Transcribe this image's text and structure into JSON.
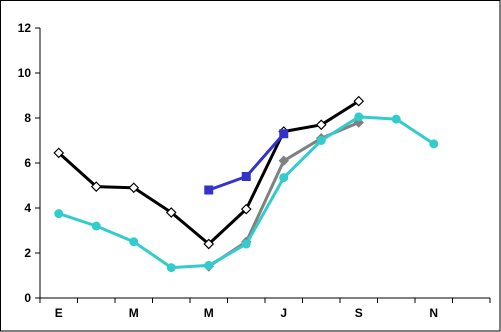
{
  "chart_data": {
    "type": "line",
    "title": "",
    "xlabel": "",
    "ylabel": "",
    "x_positions": [
      1,
      2,
      3,
      4,
      5,
      6,
      7,
      8,
      9,
      10,
      11,
      12
    ],
    "x_tick_labels": [
      {
        "x": 1,
        "label": "E"
      },
      {
        "x": 3,
        "label": "M"
      },
      {
        "x": 5,
        "label": "M"
      },
      {
        "x": 7,
        "label": "J"
      },
      {
        "x": 9,
        "label": "S"
      },
      {
        "x": 11,
        "label": "N"
      }
    ],
    "xlim": [
      0.5,
      12.5
    ],
    "ylim": [
      0,
      12
    ],
    "y_ticks": [
      0,
      2,
      4,
      6,
      8,
      10,
      12
    ],
    "grid": false,
    "legend": "none",
    "series": [
      {
        "color": "#000000",
        "marker": "diamond-open",
        "points": [
          [
            1,
            6.45
          ],
          [
            2,
            4.95
          ],
          [
            3,
            4.9
          ],
          [
            4,
            3.8
          ],
          [
            5,
            2.4
          ],
          [
            6,
            3.95
          ],
          [
            7,
            7.4
          ],
          [
            8,
            7.7
          ],
          [
            9,
            8.75
          ]
        ]
      },
      {
        "color": "#3333CC",
        "marker": "square",
        "points": [
          [
            5,
            4.8
          ],
          [
            6,
            5.4
          ],
          [
            7,
            7.3
          ]
        ]
      },
      {
        "color": "#808080",
        "marker": "diamond",
        "points": [
          [
            5,
            1.4
          ],
          [
            6,
            2.5
          ],
          [
            7,
            6.1
          ],
          [
            8,
            7.1
          ],
          [
            9,
            7.8
          ]
        ]
      },
      {
        "color": "#33CCCC",
        "marker": "circle",
        "points": [
          [
            1,
            3.75
          ],
          [
            2,
            3.2
          ],
          [
            3,
            2.5
          ],
          [
            4,
            1.35
          ],
          [
            5,
            1.45
          ],
          [
            6,
            2.4
          ],
          [
            7,
            5.35
          ],
          [
            8,
            7.0
          ],
          [
            9,
            8.05
          ],
          [
            10,
            7.95
          ],
          [
            11,
            6.85
          ]
        ]
      }
    ]
  }
}
